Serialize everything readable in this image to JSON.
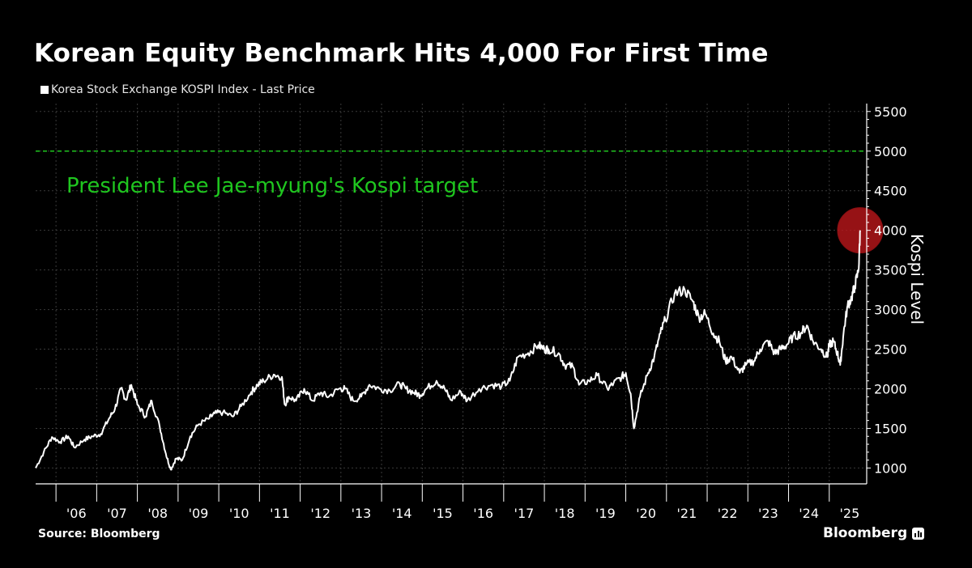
{
  "title": "Korean Equity Benchmark Hits 4,000 For First Time",
  "legend_label": "Korea Stock Exchange KOSPI Index - Last Price",
  "source": "Source: Bloomberg",
  "brand": "Bloomberg",
  "brand_icon": "bloomberg-bars-icon",
  "colors": {
    "background": "#000000",
    "line": "#ffffff",
    "target": "#1fc61f",
    "grid": "#3a3a3a",
    "highlight": "#c0171b"
  },
  "chart_data": {
    "type": "line",
    "title": "Korean Equity Benchmark Hits 4,000 For First Time",
    "ylabel": "Kospi Level",
    "xlabel": "",
    "ylim": [
      800,
      5600
    ],
    "xlim": [
      2005.5,
      2025.92
    ],
    "yticks": [
      1000,
      1500,
      2000,
      2500,
      3000,
      3500,
      4000,
      4500,
      5000,
      5500
    ],
    "xticks": [
      "'06",
      "'07",
      "'08",
      "'09",
      "'10",
      "'11",
      "'12",
      "'13",
      "'14",
      "'15",
      "'16",
      "'17",
      "'18",
      "'19",
      "'20",
      "'21",
      "'22",
      "'23",
      "'24",
      "'25"
    ],
    "grid": true,
    "series": [
      {
        "name": "Korea Stock Exchange KOSPI Index - Last Price",
        "x": [
          2005.5,
          2005.7,
          2005.9,
          2006.1,
          2006.3,
          2006.45,
          2006.7,
          2006.9,
          2007.1,
          2007.3,
          2007.45,
          2007.6,
          2007.72,
          2007.85,
          2008.0,
          2008.2,
          2008.35,
          2008.55,
          2008.7,
          2008.82,
          2008.95,
          2009.1,
          2009.3,
          2009.5,
          2009.75,
          2009.9,
          2010.1,
          2010.35,
          2010.55,
          2010.8,
          2010.95,
          2011.1,
          2011.35,
          2011.55,
          2011.62,
          2011.72,
          2011.9,
          2012.1,
          2012.3,
          2012.5,
          2012.7,
          2012.95,
          2013.1,
          2013.3,
          2013.5,
          2013.7,
          2013.95,
          2014.2,
          2014.45,
          2014.6,
          2014.8,
          2014.95,
          2015.1,
          2015.35,
          2015.55,
          2015.7,
          2015.95,
          2016.1,
          2016.4,
          2016.7,
          2016.95,
          2017.15,
          2017.35,
          2017.6,
          2017.85,
          2018.0,
          2018.1,
          2018.35,
          2018.5,
          2018.7,
          2018.85,
          2019.1,
          2019.3,
          2019.55,
          2019.7,
          2019.9,
          2020.0,
          2020.12,
          2020.2,
          2020.35,
          2020.55,
          2020.7,
          2020.85,
          2020.97,
          2021.2,
          2021.45,
          2021.65,
          2021.8,
          2021.95,
          2022.15,
          2022.3,
          2022.45,
          2022.6,
          2022.8,
          2022.95,
          2023.15,
          2023.3,
          2023.5,
          2023.65,
          2023.8,
          2023.95,
          2024.1,
          2024.3,
          2024.45,
          2024.6,
          2024.8,
          2024.95,
          2025.0,
          2025.1,
          2025.2,
          2025.27,
          2025.35,
          2025.45,
          2025.55,
          2025.63,
          2025.72,
          2025.76
        ],
        "values": [
          1000,
          1200,
          1390,
          1330,
          1400,
          1260,
          1360,
          1400,
          1430,
          1620,
          1750,
          2000,
          1860,
          2050,
          1800,
          1650,
          1850,
          1520,
          1180,
          980,
          1120,
          1100,
          1400,
          1550,
          1620,
          1690,
          1700,
          1650,
          1780,
          1960,
          2050,
          2100,
          2180,
          2150,
          1800,
          1900,
          1850,
          2000,
          1850,
          1950,
          1900,
          2000,
          2000,
          1850,
          1900,
          2050,
          2000,
          1980,
          2060,
          2000,
          1950,
          1920,
          2000,
          2100,
          2000,
          1860,
          1960,
          1850,
          2000,
          2050,
          2030,
          2100,
          2400,
          2450,
          2550,
          2500,
          2500,
          2450,
          2300,
          2280,
          2050,
          2100,
          2170,
          2000,
          2070,
          2150,
          2200,
          1940,
          1500,
          1900,
          2200,
          2400,
          2700,
          2870,
          3200,
          3250,
          3100,
          2900,
          2950,
          2700,
          2600,
          2350,
          2400,
          2200,
          2300,
          2350,
          2500,
          2600,
          2450,
          2500,
          2550,
          2650,
          2700,
          2800,
          2600,
          2500,
          2400,
          2550,
          2600,
          2450,
          2300,
          2700,
          3050,
          3150,
          3300,
          3500,
          4000
        ]
      }
    ],
    "reference_lines": [
      {
        "value": 5000,
        "label": "President Lee Jae-myung's Kospi target"
      }
    ],
    "annotations": [
      {
        "type": "circle",
        "x": 2025.76,
        "y": 4000,
        "label": ""
      }
    ]
  }
}
